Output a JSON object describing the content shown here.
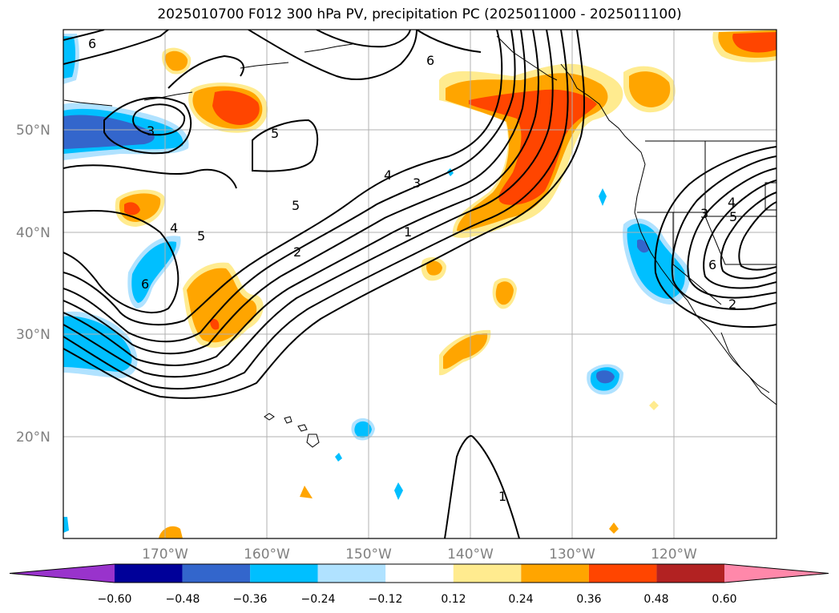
{
  "title": "2025010700 F012 300 hPa PV, precipitation PC (2025011000 - 2025011100)",
  "map": {
    "lat_labels": [
      "50°N",
      "40°N",
      "30°N",
      "20°N"
    ],
    "lon_labels": [
      "170°W",
      "160°W",
      "150°W",
      "140°W",
      "130°W",
      "120°W"
    ],
    "pv_contour_labels": [
      "6",
      "6",
      "3",
      "5",
      "4",
      "3",
      "5",
      "6",
      "4",
      "5",
      "2",
      "1",
      "6",
      "1",
      "3",
      "4",
      "5",
      "2"
    ]
  },
  "colorbar": {
    "ticks": [
      "−0.60",
      "−0.48",
      "−0.36",
      "−0.24",
      "−0.12",
      "0.12",
      "0.24",
      "0.36",
      "0.48",
      "0.60"
    ],
    "colors": [
      "#9933cc",
      "#000099",
      "#3366cc",
      "#00bfff",
      "#b0e2ff",
      "#ffffff",
      "#ffeb8f",
      "#ffa500",
      "#ff4500",
      "#b22222",
      "#ff88aa"
    ]
  }
}
